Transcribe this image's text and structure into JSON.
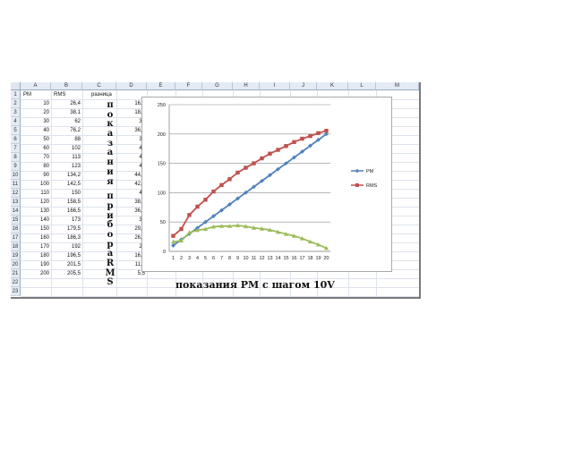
{
  "columns": [
    "A",
    "B",
    "C",
    "D",
    "E",
    "F",
    "G",
    "H",
    "I",
    "J",
    "K",
    "L",
    "M"
  ],
  "rows": [
    "1",
    "2",
    "3",
    "4",
    "5",
    "6",
    "7",
    "8",
    "9",
    "10",
    "11",
    "12",
    "13",
    "14",
    "15",
    "16",
    "17",
    "18",
    "19",
    "20",
    "21",
    "22",
    "23"
  ],
  "headers": {
    "a": "PM",
    "b": "RMS",
    "c": "разница"
  },
  "table": [
    [
      "10",
      "26,4",
      "16,4"
    ],
    [
      "20",
      "38,1",
      "18,1"
    ],
    [
      "30",
      "62",
      "32"
    ],
    [
      "40",
      "76,2",
      "36,2"
    ],
    [
      "50",
      "88",
      "38"
    ],
    [
      "60",
      "102",
      "42"
    ],
    [
      "70",
      "113",
      "43"
    ],
    [
      "80",
      "123",
      "43"
    ],
    [
      "90",
      "134,2",
      "44,2"
    ],
    [
      "100",
      "142,5",
      "42,5"
    ],
    [
      "110",
      "150",
      "40"
    ],
    [
      "120",
      "158,5",
      "38,5"
    ],
    [
      "130",
      "166,5",
      "36,5"
    ],
    [
      "140",
      "173",
      "33"
    ],
    [
      "150",
      "179,5",
      "29,5"
    ],
    [
      "160",
      "186,3",
      "26,3"
    ],
    [
      "170",
      "192",
      "22"
    ],
    [
      "180",
      "196,5",
      "16,5"
    ],
    [
      "190",
      "201,5",
      "11,5"
    ],
    [
      "200",
      "205,5",
      "5,5"
    ]
  ],
  "vertical_text": [
    "п",
    "о",
    "к",
    "а",
    "з",
    "а",
    "н",
    "и",
    "я",
    " ",
    "п",
    "р",
    "и",
    "б",
    "о",
    "р",
    "а",
    "R",
    "M",
    "S"
  ],
  "caption": "показания PM с шагом 10V",
  "chart_data": {
    "type": "line",
    "x": [
      1,
      2,
      3,
      4,
      5,
      6,
      7,
      8,
      9,
      10,
      11,
      12,
      13,
      14,
      15,
      16,
      17,
      18,
      19,
      20
    ],
    "ylim": [
      0,
      250
    ],
    "yticks": [
      "0",
      "50",
      "100",
      "150",
      "200",
      "250"
    ],
    "grid": true,
    "legend_position": "right",
    "series": [
      {
        "name": "PM",
        "color": "#4f81bd",
        "marker": "diamond",
        "values": [
          10,
          20,
          30,
          40,
          50,
          60,
          70,
          80,
          90,
          100,
          110,
          120,
          130,
          140,
          150,
          160,
          170,
          180,
          190,
          200
        ]
      },
      {
        "name": "RMS",
        "color": "#c0504d",
        "marker": "square",
        "values": [
          26.4,
          38.1,
          62,
          76.2,
          88,
          102,
          113,
          123,
          134.2,
          142.5,
          150,
          158.5,
          166.5,
          173,
          179.5,
          186.3,
          192,
          196.5,
          201.5,
          205.5
        ]
      },
      {
        "name": "",
        "color": "#9bbb59",
        "marker": "triangle",
        "values": [
          16.4,
          18.1,
          32,
          36.2,
          38,
          42,
          43,
          43,
          44.2,
          42.5,
          40,
          38.5,
          36.5,
          33,
          29.5,
          26.3,
          22,
          16.5,
          11.5,
          5.5
        ]
      }
    ]
  }
}
